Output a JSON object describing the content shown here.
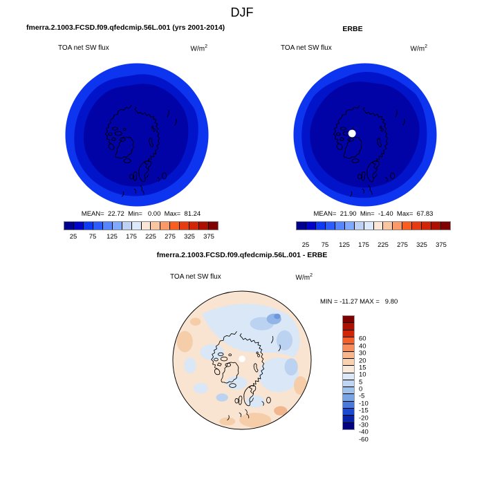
{
  "page_title": "DJF",
  "model_panel": {
    "case_title": "fmerra.2.1003.FCSD.f09.qfedcmip.56L.001 (yrs 2001-2014)",
    "field_label": "TOA net SW flux",
    "units_base": "W/m",
    "units_exp": "2",
    "stats": "MEAN=  22.72  Min=   0.00  Max=  81.24"
  },
  "obs_panel": {
    "case_title": "ERBE",
    "field_label": "TOA net SW flux",
    "units_base": "W/m",
    "units_exp": "2",
    "stats": "MEAN=  21.90  Min=  -1.40  Max=  67.83"
  },
  "diff_panel": {
    "case_title": "fmerra.2.1003.FCSD.f09.qfedcmip.56L.001 - ERBE",
    "field_label": "TOA net SW flux",
    "units_base": "W/m",
    "units_exp": "2",
    "minmax": "MIN = -11.27 MAX =   9.80"
  },
  "colorbar_top": {
    "colors": [
      "#00008F",
      "#0003C8",
      "#0D3BF5",
      "#2B5CFF",
      "#5585FF",
      "#7FA8FF",
      "#BDD2F3",
      "#DCE9FA",
      "#FAE7D7",
      "#F9C5A2",
      "#FB9A66",
      "#F95E20",
      "#E73B12",
      "#D22406",
      "#AD1000",
      "#7E0000"
    ],
    "ticks": [
      {
        "label": "25",
        "pos": 0.0625
      },
      {
        "label": "75",
        "pos": 0.1875
      },
      {
        "label": "125",
        "pos": 0.3125
      },
      {
        "label": "175",
        "pos": 0.4375
      },
      {
        "label": "225",
        "pos": 0.5625
      },
      {
        "label": "275",
        "pos": 0.6875
      },
      {
        "label": "325",
        "pos": 0.8125
      },
      {
        "label": "375",
        "pos": 0.9375
      }
    ]
  },
  "colorbar_diff": {
    "colors": [
      "#7E0000",
      "#AD1000",
      "#D22406",
      "#F4602C",
      "#F58E5C",
      "#F8B68C",
      "#FAD2B2",
      "#F9E9DA",
      "#DCE8F7",
      "#BED6F2",
      "#9FC1EC",
      "#7BA4E3",
      "#4A79DC",
      "#1C49D2",
      "#0721A8",
      "#000080"
    ],
    "ticks": [
      {
        "label": "60",
        "pos": 0.0625
      },
      {
        "label": "40",
        "pos": 0.125
      },
      {
        "label": "30",
        "pos": 0.1875
      },
      {
        "label": "20",
        "pos": 0.25
      },
      {
        "label": "15",
        "pos": 0.3125
      },
      {
        "label": "10",
        "pos": 0.375
      },
      {
        "label": "5",
        "pos": 0.4375
      },
      {
        "label": "0",
        "pos": 0.5
      },
      {
        "label": "-5",
        "pos": 0.5625
      },
      {
        "label": "-10",
        "pos": 0.625
      },
      {
        "label": "-15",
        "pos": 0.6875
      },
      {
        "label": "-20",
        "pos": 0.75
      },
      {
        "label": "-30",
        "pos": 0.8125
      },
      {
        "label": "-40",
        "pos": 0.875
      },
      {
        "label": "-60",
        "pos": 0.9375
      }
    ]
  },
  "map_colors": {
    "polar_low": "#0103A6",
    "polar_mid": "#0214C9",
    "polar_outer": "#0D35F0",
    "diff_bg": "#F8E4D0",
    "diff_warm": "#F6CDA9",
    "diff_warm2": "#F2B68E",
    "diff_blue_light": "#D9E7F7",
    "diff_blue_mid": "#BBD3F0",
    "diff_blue_deep": "#92B5E8",
    "diff_blue_deepest": "#6F97DE",
    "coast": "#000000",
    "pole_dot": "#FFFFFF",
    "circle_outline": "#000000"
  },
  "chart_data": [
    {
      "type": "heatmap",
      "panel": "model",
      "season": "DJF",
      "title": "fmerra.2.1003.FCSD.f09.qfedcmip.56L.001 (yrs 2001-2014)",
      "variable": "TOA net SW flux",
      "units": "W/m^2",
      "projection": "north polar stereographic",
      "stats": {
        "mean": 22.72,
        "min": 0.0,
        "max": 81.24
      },
      "legend_ticks": [
        25,
        75,
        125,
        175,
        225,
        275,
        325,
        375
      ],
      "contour_bins": 16,
      "value_range": [
        0,
        400
      ],
      "legend_position": "bottom",
      "colormap": "blue-to-red diverging"
    },
    {
      "type": "heatmap",
      "panel": "observation",
      "season": "DJF",
      "title": "ERBE",
      "variable": "TOA net SW flux",
      "units": "W/m^2",
      "projection": "north polar stereographic",
      "stats": {
        "mean": 21.9,
        "min": -1.4,
        "max": 67.83
      },
      "legend_ticks": [
        25,
        75,
        125,
        175,
        225,
        275,
        325,
        375
      ],
      "contour_bins": 16,
      "value_range": [
        0,
        400
      ],
      "legend_position": "bottom",
      "colormap": "blue-to-red diverging",
      "notes": "white dot of missing data at the pole"
    },
    {
      "type": "heatmap",
      "panel": "difference",
      "season": "DJF",
      "title": "fmerra.2.1003.FCSD.f09.qfedcmip.56L.001 - ERBE",
      "variable": "TOA net SW flux",
      "units": "W/m^2",
      "projection": "north polar stereographic",
      "stats": {
        "min": -11.27,
        "max": 9.8
      },
      "contour_levels": [
        -60,
        -40,
        -30,
        -20,
        -15,
        -10,
        -5,
        0,
        5,
        10,
        15,
        20,
        30,
        40,
        60
      ],
      "legend_position": "right",
      "colormap": "blue-to-red diverging",
      "notes": "white dot of missing data at the pole"
    }
  ]
}
